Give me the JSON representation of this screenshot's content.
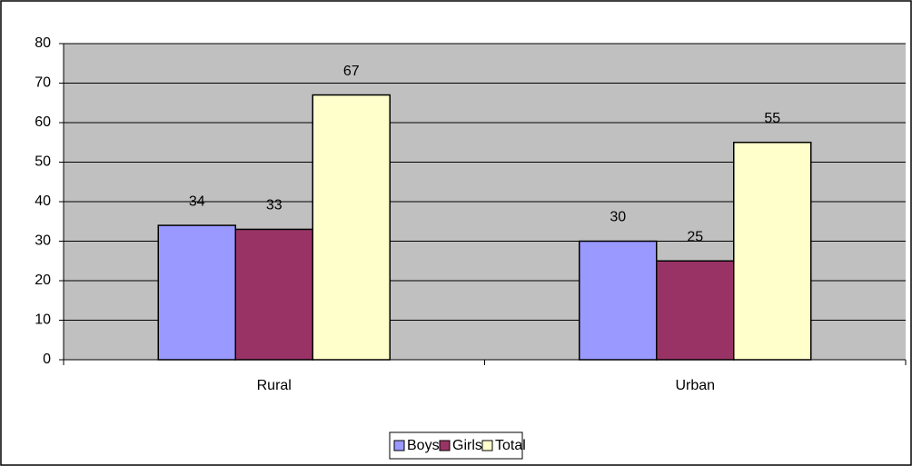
{
  "chart_data": {
    "type": "bar",
    "categories": [
      "Rural",
      "Urban"
    ],
    "series": [
      {
        "name": "Boys",
        "color": "#9999ff",
        "values": [
          34,
          30
        ]
      },
      {
        "name": "Girls",
        "color": "#993366",
        "values": [
          33,
          25
        ]
      },
      {
        "name": "Total",
        "color": "#ffffcc",
        "values": [
          67,
          55
        ]
      }
    ],
    "ylim": [
      0,
      80
    ],
    "yticks": [
      0,
      10,
      20,
      30,
      40,
      50,
      60,
      70,
      80
    ],
    "grid": true,
    "legend": "bottom",
    "data_labels": true
  }
}
